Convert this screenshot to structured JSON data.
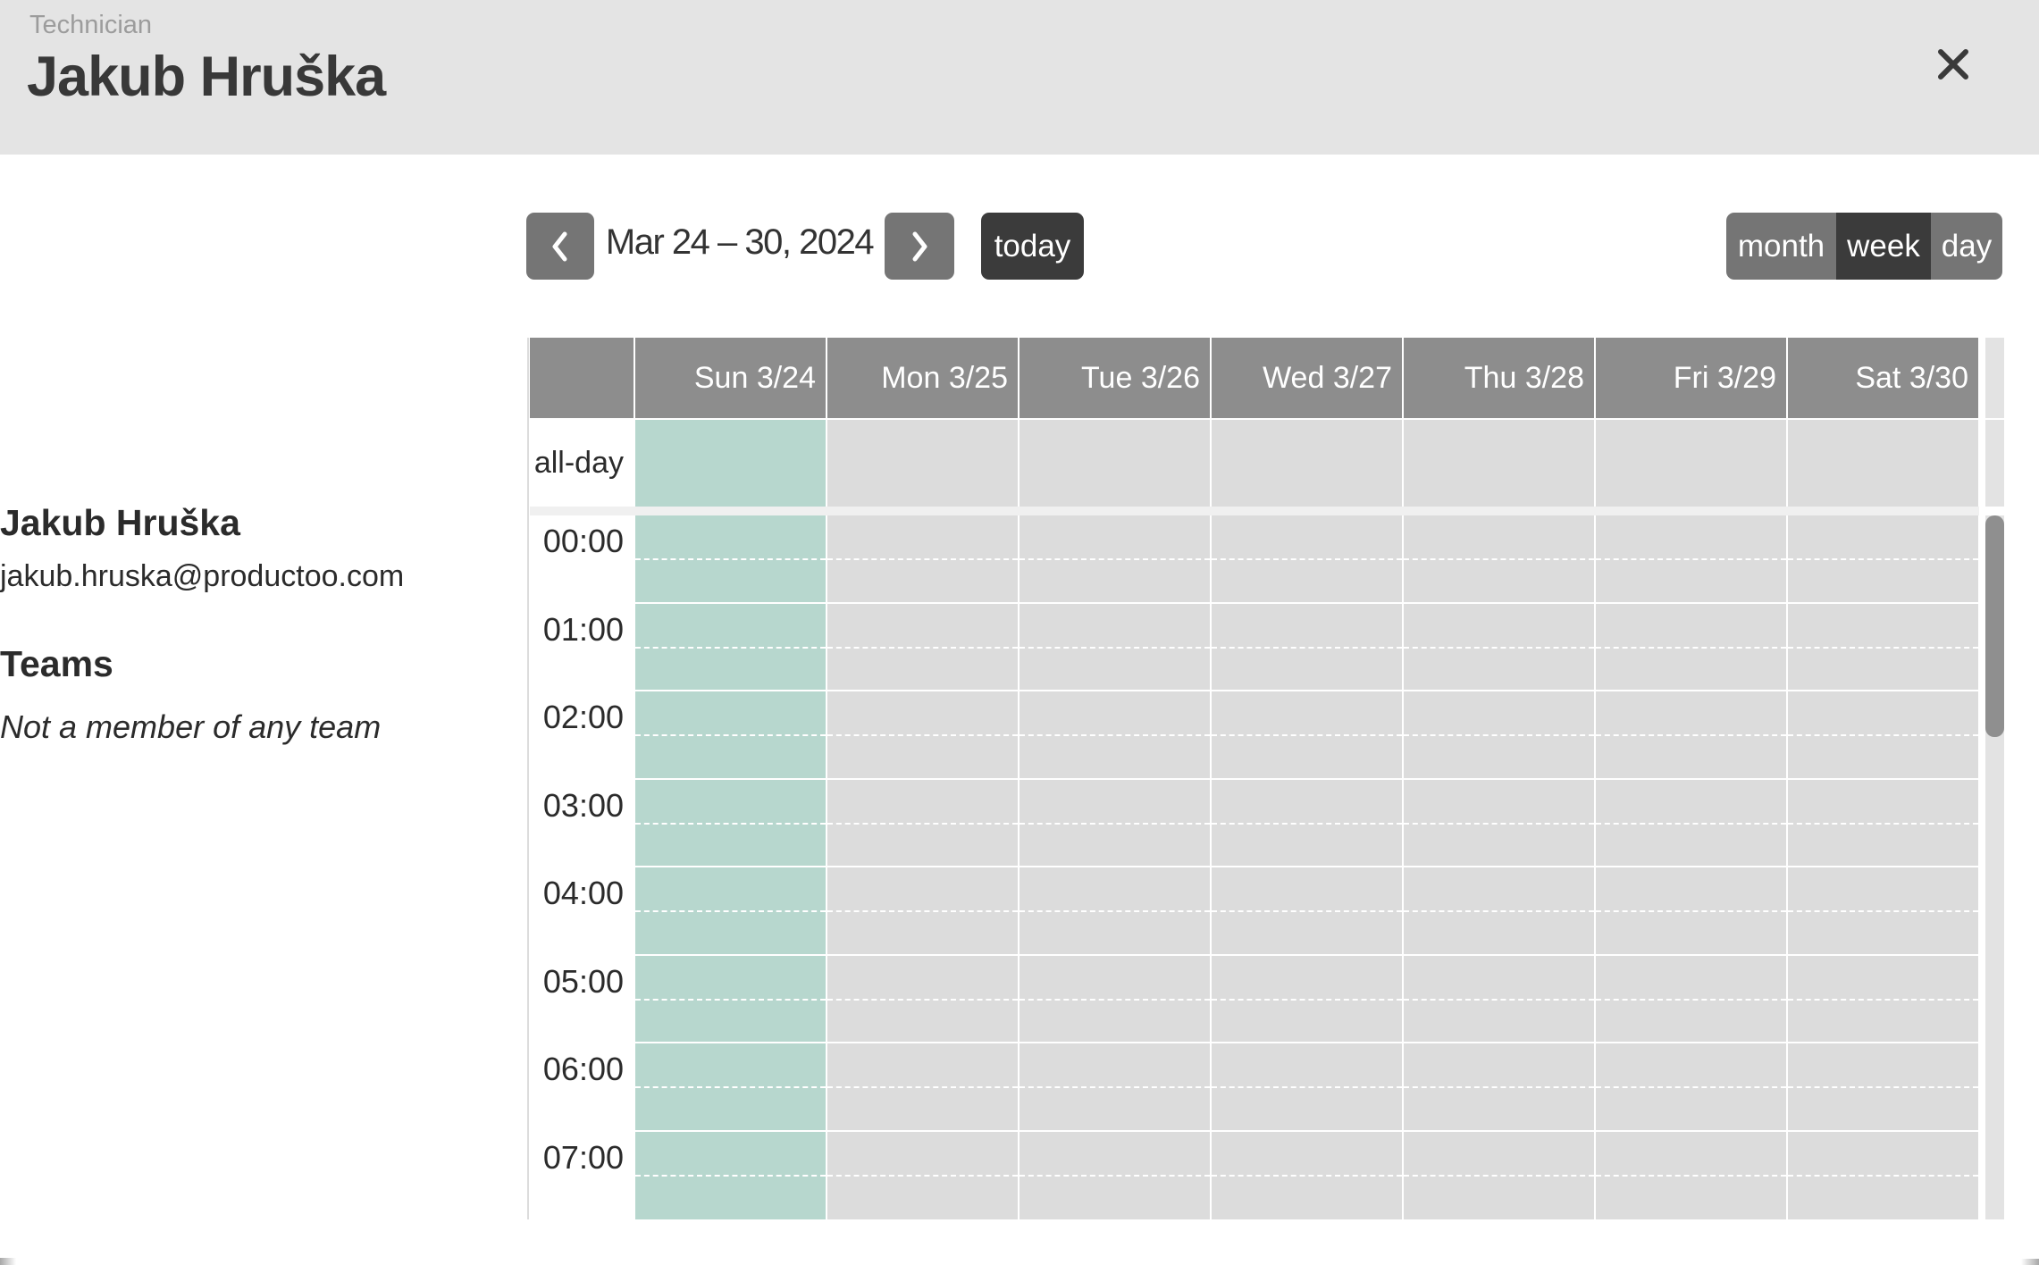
{
  "window": {
    "subtitle": "Technician",
    "title": "Jakub Hruška"
  },
  "profile": {
    "name": "Jakub Hruška",
    "email": "jakub.hruska@productoo.com",
    "teams_heading": "Teams",
    "teams_empty": "Not a member of any team"
  },
  "toolbar": {
    "range_title": "Mar 24 – 30, 2024",
    "today_label": "today",
    "views": [
      {
        "id": "month",
        "label": "month",
        "active": false
      },
      {
        "id": "week",
        "label": "week",
        "active": true
      },
      {
        "id": "day",
        "label": "day",
        "active": false
      }
    ]
  },
  "calendar": {
    "all_day_label": "all-day",
    "days": [
      {
        "label": "Sun 3/24",
        "highlighted": true
      },
      {
        "label": "Mon 3/25",
        "highlighted": false
      },
      {
        "label": "Tue 3/26",
        "highlighted": false
      },
      {
        "label": "Wed 3/27",
        "highlighted": false
      },
      {
        "label": "Thu 3/28",
        "highlighted": false
      },
      {
        "label": "Fri 3/29",
        "highlighted": false
      },
      {
        "label": "Sat 3/30",
        "highlighted": false
      }
    ],
    "hour_labels": [
      "00:00",
      "01:00",
      "02:00",
      "03:00",
      "04:00",
      "05:00",
      "06:00",
      "07:00"
    ],
    "colors": {
      "highlight_cell": "#b7d7ce",
      "cell": "#dcdcdc",
      "header_cell": "#8d8d8d",
      "button_gray": "#757575",
      "button_dark": "#3b3b3b",
      "accent_text": "#383838"
    }
  }
}
